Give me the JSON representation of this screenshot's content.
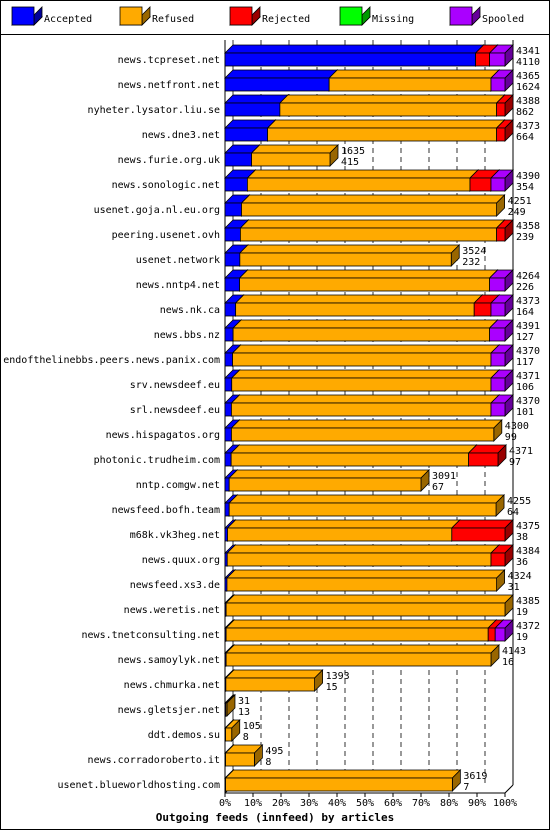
{
  "chart_data": {
    "type": "bar",
    "orientation": "horizontal",
    "stacked": true,
    "title": "Outgoing feeds (innfeed) by articles",
    "x_ticks": [
      "0%",
      "10%",
      "20%",
      "30%",
      "40%",
      "50%",
      "60%",
      "70%",
      "80%",
      "90%",
      "100%"
    ],
    "xlim": [
      0,
      100
    ],
    "grid": true,
    "legend_position": "top",
    "colors": {
      "accepted": "#0000ff",
      "refused": "#ffaa00",
      "rejected": "#ff0000",
      "missing": "#00ff00",
      "spooled": "#aa00ff"
    },
    "legend": [
      {
        "key": "accepted",
        "label": "Accepted"
      },
      {
        "key": "refused",
        "label": "Refused"
      },
      {
        "key": "rejected",
        "label": "Rejected"
      },
      {
        "key": "missing",
        "label": "Missing"
      },
      {
        "key": "spooled",
        "label": "Spooled"
      }
    ],
    "rows": [
      {
        "name": "news.tcpreset.net",
        "total": "4341",
        "accepted_count": "4110",
        "pct": [
          89.5,
          0,
          5.0,
          0,
          5.5
        ]
      },
      {
        "name": "news.netfront.net",
        "total": "4365",
        "accepted_count": "1624",
        "pct": [
          37.2,
          57.8,
          0,
          0,
          5.0
        ]
      },
      {
        "name": "nyheter.lysator.liu.se",
        "total": "4388",
        "accepted_count": "862",
        "pct": [
          19.6,
          77.4,
          3.0,
          0,
          0
        ]
      },
      {
        "name": "news.dne3.net",
        "total": "4373",
        "accepted_count": "664",
        "pct": [
          15.2,
          81.8,
          3.0,
          0,
          0
        ]
      },
      {
        "name": "news.furie.org.uk",
        "total": "1635",
        "accepted_count": "415",
        "pct": [
          9.5,
          28.0,
          0,
          0,
          0
        ]
      },
      {
        "name": "news.sonologic.net",
        "total": "4390",
        "accepted_count": "354",
        "pct": [
          8.0,
          79.5,
          7.5,
          0,
          5.0
        ]
      },
      {
        "name": "usenet.goja.nl.eu.org",
        "total": "4251",
        "accepted_count": "249",
        "pct": [
          5.9,
          91.1,
          0,
          0,
          0
        ]
      },
      {
        "name": "peering.usenet.ovh",
        "total": "4358",
        "accepted_count": "239",
        "pct": [
          5.5,
          91.5,
          3.0,
          0,
          0
        ]
      },
      {
        "name": "usenet.network",
        "total": "3524",
        "accepted_count": "232",
        "pct": [
          5.3,
          75.5,
          0,
          0,
          0
        ]
      },
      {
        "name": "news.nntp4.net",
        "total": "4264",
        "accepted_count": "226",
        "pct": [
          5.2,
          89.3,
          0,
          0,
          5.5
        ]
      },
      {
        "name": "news.nk.ca",
        "total": "4373",
        "accepted_count": "164",
        "pct": [
          3.8,
          85.2,
          6.0,
          0,
          5.0
        ]
      },
      {
        "name": "news.bbs.nz",
        "total": "4391",
        "accepted_count": "127",
        "pct": [
          2.9,
          91.6,
          0,
          0,
          5.5
        ]
      },
      {
        "name": "endofthelinebbs.peers.news.panix.com",
        "total": "4370",
        "accepted_count": "117",
        "pct": [
          2.7,
          92.3,
          0,
          0,
          5.0
        ]
      },
      {
        "name": "srv.newsdeef.eu",
        "total": "4371",
        "accepted_count": "106",
        "pct": [
          2.4,
          92.6,
          0,
          0,
          5.0
        ]
      },
      {
        "name": "srl.newsdeef.eu",
        "total": "4370",
        "accepted_count": "101",
        "pct": [
          2.3,
          92.7,
          0,
          0,
          5.0
        ]
      },
      {
        "name": "news.hispagatos.org",
        "total": "4300",
        "accepted_count": "99",
        "pct": [
          2.3,
          93.7,
          0,
          0,
          0
        ]
      },
      {
        "name": "photonic.trudheim.com",
        "total": "4371",
        "accepted_count": "97",
        "pct": [
          2.2,
          84.8,
          10.5,
          0,
          0
        ]
      },
      {
        "name": "nntp.comgw.net",
        "total": "3091",
        "accepted_count": "67",
        "pct": [
          1.5,
          68.5,
          0,
          0,
          0
        ]
      },
      {
        "name": "newsfeed.bofh.team",
        "total": "4255",
        "accepted_count": "64",
        "pct": [
          1.5,
          95.3,
          0,
          0,
          0
        ]
      },
      {
        "name": "m68k.vk3heg.net",
        "total": "4375",
        "accepted_count": "38",
        "pct": [
          0.9,
          80.1,
          19.0,
          0,
          0
        ]
      },
      {
        "name": "news.quux.org",
        "total": "4384",
        "accepted_count": "36",
        "pct": [
          0.8,
          94.2,
          5.0,
          0,
          0
        ]
      },
      {
        "name": "newsfeed.xs3.de",
        "total": "4324",
        "accepted_count": "31",
        "pct": [
          0.7,
          96.3,
          0,
          0,
          0
        ]
      },
      {
        "name": "news.weretis.net",
        "total": "4385",
        "accepted_count": "19",
        "pct": [
          0.4,
          99.6,
          0,
          0,
          0
        ]
      },
      {
        "name": "news.tnetconsulting.net",
        "total": "4372",
        "accepted_count": "19",
        "pct": [
          0.4,
          93.6,
          2.5,
          0,
          3.5
        ]
      },
      {
        "name": "news.samoylyk.net",
        "total": "4143",
        "accepted_count": "16",
        "pct": [
          0.4,
          94.6,
          0,
          0,
          0
        ]
      },
      {
        "name": "news.chmurka.net",
        "total": "1393",
        "accepted_count": "15",
        "pct": [
          0.3,
          31.7,
          0,
          0,
          0
        ]
      },
      {
        "name": "news.gletsjer.net",
        "total": "31",
        "accepted_count": "13",
        "pct": [
          0.3,
          0.4,
          0,
          0,
          0
        ]
      },
      {
        "name": "ddt.demos.su",
        "total": "105",
        "accepted_count": "8",
        "pct": [
          0.2,
          2.2,
          0,
          0,
          0
        ]
      },
      {
        "name": "news.corradoroberto.it",
        "total": "495",
        "accepted_count": "8",
        "pct": [
          0.2,
          10.3,
          0,
          0,
          0
        ]
      },
      {
        "name": "usenet.blueworldhosting.com",
        "total": "3619",
        "accepted_count": "7",
        "pct": [
          0.2,
          81.0,
          0,
          0,
          0
        ]
      }
    ]
  }
}
